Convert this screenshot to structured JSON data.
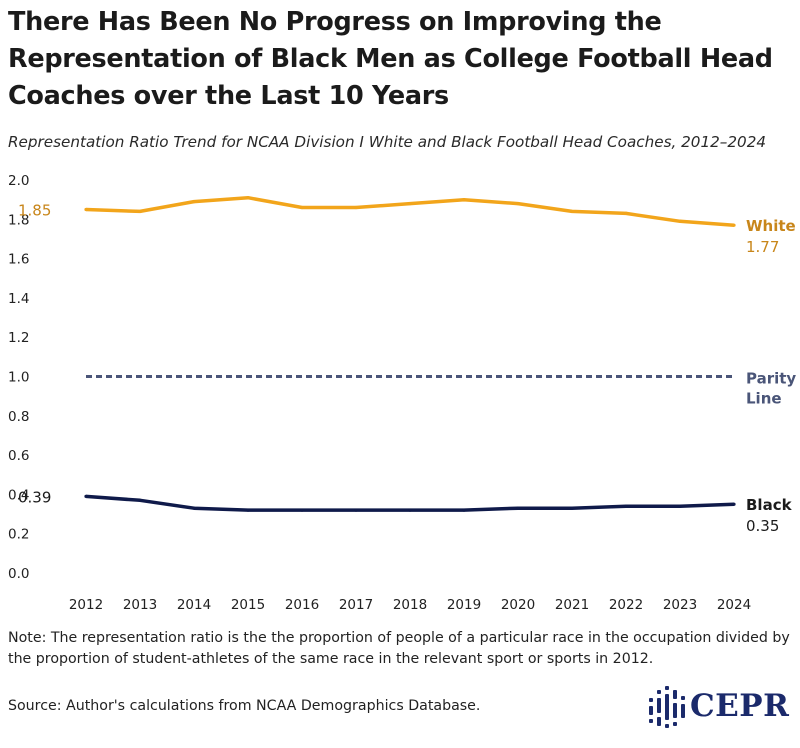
{
  "title": "There Has Been No Progress on Improving the Representation of Black Men as College Football Head Coaches over the Last 10 Years",
  "subtitle": "Representation Ratio Trend for NCAA Division I White and Black Football Head Coaches, 2012–2024",
  "note": "Note: The representation ratio is the the proportion of people of a particular race in the occupation divided by the proportion of student-athletes of the same race in the relevant sport or sports in 2012.",
  "source": "Source: Author's calculations from NCAA Demographics Database.",
  "logo": {
    "text": "CEPR",
    "icon": "cepr-dots-icon",
    "color": "#1b2a6b"
  },
  "chart_data": {
    "type": "line",
    "x": [
      2012,
      2013,
      2014,
      2015,
      2016,
      2017,
      2018,
      2019,
      2020,
      2021,
      2022,
      2023,
      2024
    ],
    "ylim": [
      0,
      2.0
    ],
    "yticks": [
      "0.0",
      "0.2",
      "0.4",
      "0.6",
      "0.8",
      "1.0",
      "1.2",
      "1.4",
      "1.6",
      "1.8",
      "2.0"
    ],
    "grid": false,
    "series": [
      {
        "name": "White",
        "color": "#f2a51b",
        "label_color": "#c8861a",
        "values": [
          1.85,
          1.84,
          1.89,
          1.91,
          1.86,
          1.86,
          1.88,
          1.9,
          1.88,
          1.84,
          1.83,
          1.79,
          1.77
        ],
        "start_label": "1.85",
        "end_label": "1.77"
      },
      {
        "name": "Black",
        "color": "#0f1a4a",
        "label_color": "#1b1b1b",
        "values": [
          0.39,
          0.37,
          0.33,
          0.32,
          0.32,
          0.32,
          0.32,
          0.32,
          0.33,
          0.33,
          0.34,
          0.34,
          0.35
        ],
        "start_label": "0.39",
        "end_label": "0.35"
      }
    ],
    "reference_line": {
      "value": 1.0,
      "label_lines": [
        "Parity",
        "Line"
      ],
      "color": "#4a5578",
      "style": "dashed"
    }
  }
}
